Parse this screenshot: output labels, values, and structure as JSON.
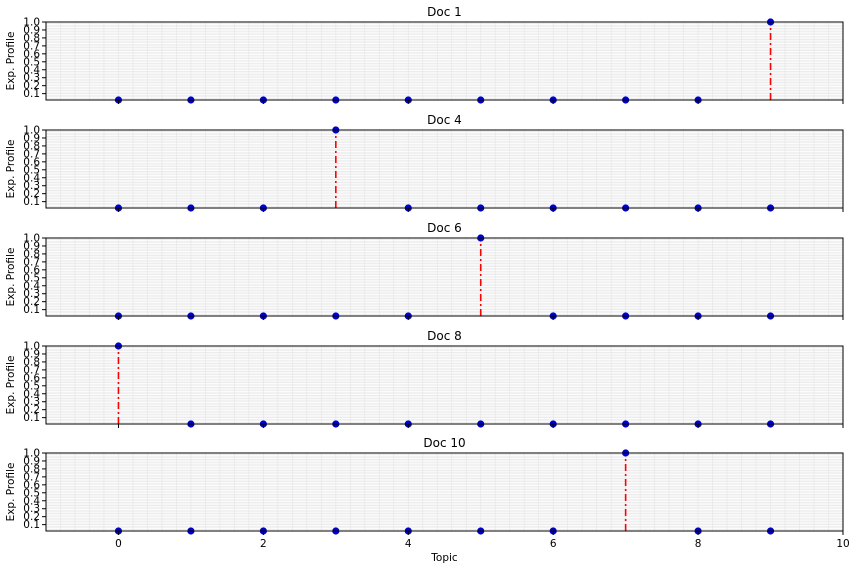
{
  "chart_data": {
    "type": "stem",
    "xlabel": "Topic",
    "ylabel": "Exp. Profile",
    "xlim": [
      -1,
      10
    ],
    "ylim": [
      0.02,
      1.0
    ],
    "xticks": [
      0,
      2,
      4,
      6,
      8,
      10
    ],
    "yticks": [
      0.1,
      0.2,
      0.3,
      0.4,
      0.5,
      0.6,
      0.7,
      0.8,
      0.9,
      1.0
    ],
    "ytick_labels": [
      "0.1",
      "0.2",
      "0.3",
      "0.4",
      "0.5",
      "0.6",
      "0.7",
      "0.8",
      "0.9",
      "1.0"
    ],
    "grid": true,
    "colors": {
      "marker": "#0000cc",
      "stem": "#ff0000",
      "grid": "#e6e6e6"
    },
    "panels": [
      {
        "title": "Doc 1",
        "x": [
          0,
          1,
          2,
          3,
          4,
          5,
          6,
          7,
          8,
          9
        ],
        "values": [
          0,
          0,
          0,
          0,
          0,
          0,
          0,
          0,
          0,
          1
        ]
      },
      {
        "title": "Doc 4",
        "x": [
          0,
          1,
          2,
          3,
          4,
          5,
          6,
          7,
          8,
          9
        ],
        "values": [
          0,
          0,
          0,
          1,
          0,
          0,
          0,
          0,
          0,
          0
        ]
      },
      {
        "title": "Doc 6",
        "x": [
          0,
          1,
          2,
          3,
          4,
          5,
          6,
          7,
          8,
          9
        ],
        "values": [
          0,
          0,
          0,
          0,
          0,
          1,
          0,
          0,
          0,
          0
        ]
      },
      {
        "title": "Doc 8",
        "x": [
          0,
          1,
          2,
          3,
          4,
          5,
          6,
          7,
          8,
          9
        ],
        "values": [
          1,
          0,
          0,
          0,
          0,
          0,
          0,
          0,
          0,
          0
        ]
      },
      {
        "title": "Doc 10",
        "x": [
          0,
          1,
          2,
          3,
          4,
          5,
          6,
          7,
          8,
          9
        ],
        "values": [
          0,
          0,
          0,
          0,
          0,
          0,
          0,
          1,
          0,
          0
        ]
      }
    ]
  }
}
